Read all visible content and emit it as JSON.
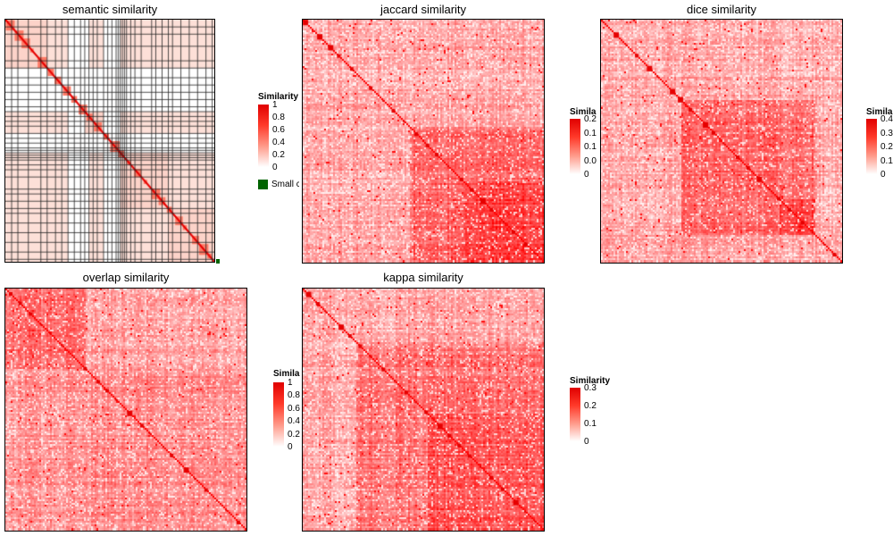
{
  "chart_data": [
    {
      "type": "heatmap",
      "title": "semantic similarity",
      "legend_title": "Similarity",
      "legend_ticks": [
        "1",
        "0.8",
        "0.6",
        "0.4",
        "0.2",
        "0"
      ],
      "range": [
        0,
        1
      ],
      "extra_legend_label": "Small c",
      "extra_legend_color": "#006400",
      "style": "blocks-gridlines",
      "color_high": "#ff0000",
      "color_low": "#ffffff"
    },
    {
      "type": "heatmap",
      "title": "jaccard similarity",
      "legend_title": "Similarity",
      "legend_ticks": [
        "0.2",
        "0.1",
        "0.1",
        "0.0",
        "0"
      ],
      "range": [
        0,
        0.25
      ],
      "style": "noise",
      "color_high": "#ff0000",
      "color_low": "#ffffff"
    },
    {
      "type": "heatmap",
      "title": "dice similarity",
      "legend_title": "Similarity",
      "legend_ticks": [
        "0.4",
        "0.3",
        "0.2",
        "0.1",
        "0"
      ],
      "range": [
        0,
        0.4
      ],
      "style": "noise",
      "color_high": "#ff0000",
      "color_low": "#ffffff"
    },
    {
      "type": "heatmap",
      "title": "overlap similarity",
      "legend_title": "Simila",
      "legend_ticks": [
        "1",
        "0.8",
        "0.6",
        "0.4",
        "0.2",
        "0"
      ],
      "range": [
        0,
        1
      ],
      "style": "noise",
      "color_high": "#ff0000",
      "color_low": "#ffffff"
    },
    {
      "type": "heatmap",
      "title": "kappa similarity",
      "legend_title": "Similarity",
      "legend_ticks": [
        "0.3",
        "0.2",
        "0.1",
        "0"
      ],
      "range": [
        0,
        0.3
      ],
      "style": "noise",
      "color_high": "#ff0000",
      "color_low": "#ffffff"
    }
  ]
}
